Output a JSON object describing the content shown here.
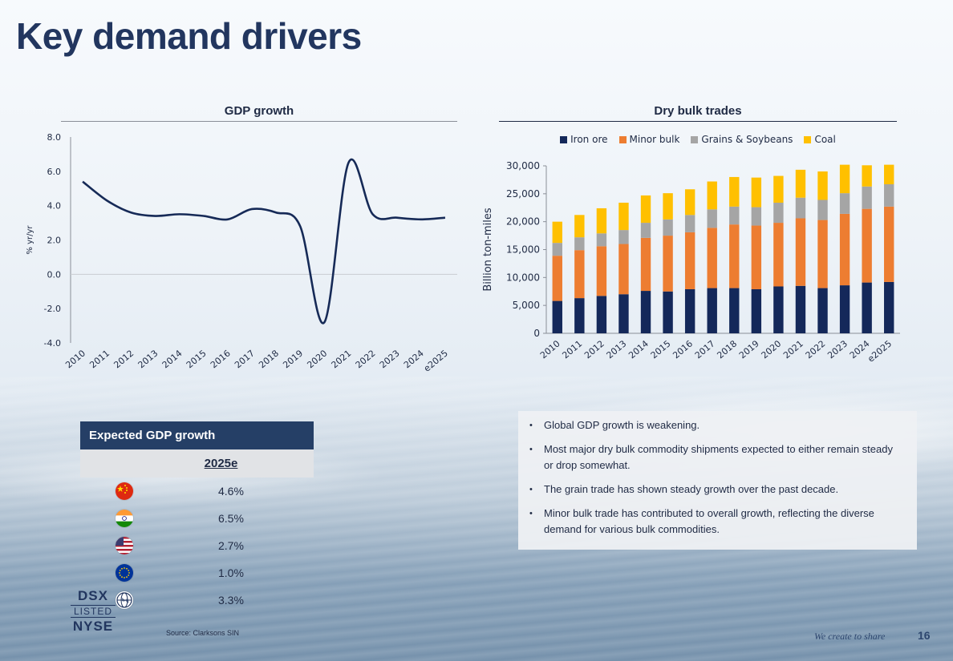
{
  "page": {
    "title": "Key demand drivers",
    "footer_tag": "We create to share",
    "page_number": "16",
    "source": "Source: Clarksons SIN"
  },
  "gdp_chart": {
    "title": "GDP growth",
    "ylabel": "% yr/yr"
  },
  "bulk_chart": {
    "title": "Dry bulk trades",
    "ylabel": "Billion ton-miles"
  },
  "chart_data": [
    {
      "type": "line",
      "title": "GDP growth",
      "xlabel": "",
      "ylabel": "% yr/yr",
      "x": [
        "2010",
        "2011",
        "2012",
        "2013",
        "2014",
        "2015",
        "2016",
        "2017",
        "2018",
        "2019",
        "2020",
        "2021",
        "2022",
        "2023",
        "2024",
        "e2025"
      ],
      "values": [
        5.4,
        4.3,
        3.6,
        3.4,
        3.5,
        3.4,
        3.2,
        3.8,
        3.6,
        2.8,
        -2.8,
        6.5,
        3.5,
        3.3,
        3.2,
        3.3
      ],
      "ylim": [
        -4.0,
        8.0
      ],
      "yticks": [
        "-4.0",
        "-2.0",
        "0.0",
        "2.0",
        "4.0",
        "6.0",
        "8.0"
      ],
      "color": "#162a57",
      "grid": false
    },
    {
      "type": "bar",
      "stacked": true,
      "title": "Dry bulk trades",
      "xlabel": "",
      "ylabel": "Billion ton-miles",
      "categories": [
        "2010",
        "2011",
        "2012",
        "2013",
        "2014",
        "2015",
        "2016",
        "2017",
        "2018",
        "2019",
        "2020",
        "2021",
        "2022",
        "2023",
        "2024",
        "e2025"
      ],
      "ylim": [
        0,
        30000
      ],
      "yticks": [
        "0",
        "5,000",
        "10,000",
        "15,000",
        "20,000",
        "25,000",
        "30,000"
      ],
      "legend_position": "top",
      "series": [
        {
          "name": "Iron ore",
          "color": "#14285a",
          "values": [
            5800,
            6300,
            6700,
            7000,
            7600,
            7500,
            7900,
            8100,
            8100,
            7900,
            8400,
            8500,
            8100,
            8600,
            9100,
            9200
          ]
        },
        {
          "name": "Minor bulk",
          "color": "#ed7d31",
          "values": [
            8100,
            8600,
            8900,
            9000,
            9500,
            10000,
            10200,
            10800,
            11400,
            11400,
            11400,
            12100,
            12200,
            12800,
            13200,
            13500
          ]
        },
        {
          "name": "Grains & Soybeans",
          "color": "#a5a5a5",
          "values": [
            2300,
            2300,
            2300,
            2500,
            2700,
            2900,
            3100,
            3300,
            3200,
            3300,
            3600,
            3700,
            3600,
            3700,
            4000,
            4000
          ]
        },
        {
          "name": "Coal",
          "color": "#ffc000",
          "values": [
            3800,
            4000,
            4500,
            4900,
            4900,
            4700,
            4600,
            5000,
            5300,
            5300,
            4800,
            5000,
            5100,
            5100,
            3800,
            3500
          ]
        }
      ]
    }
  ],
  "gdp_table": {
    "header": "Expected GDP growth",
    "column": "2025e",
    "rows": [
      {
        "region": "china-flag-icon",
        "value": "4.6%"
      },
      {
        "region": "india-flag-icon",
        "value": "6.5%"
      },
      {
        "region": "usa-flag-icon",
        "value": "2.7%"
      },
      {
        "region": "eu-flag-icon",
        "value": "1.0%"
      },
      {
        "region": "globe-icon",
        "value": "3.3%"
      }
    ]
  },
  "logo": {
    "top": "DSX",
    "middle": "LISTED",
    "bottom": "NYSE"
  },
  "bullets": [
    "Global GDP growth is weakening.",
    "Most major dry bulk commodity shipments expected to either remain steady or drop somewhat.",
    "The grain trade has shown steady growth over the past decade.",
    "Minor bulk trade has contributed to overall growth, reflecting the diverse demand for various bulk commodities."
  ]
}
